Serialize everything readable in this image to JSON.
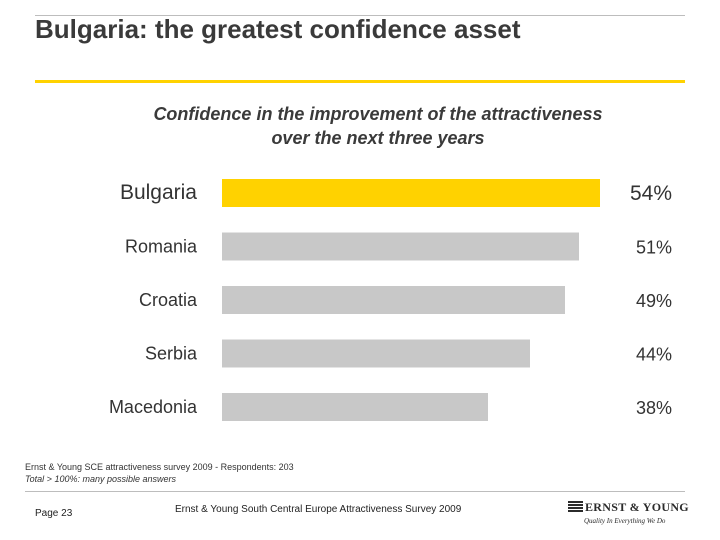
{
  "slide": {
    "title": "Bulgaria: the greatest confidence asset",
    "accent_color": "#ffd200",
    "footnote_line1": "Ernst & Young SCE attractiveness survey 2009 - Respondents: 203",
    "footnote_line2": "Total > 100%: many possible answers",
    "page_number": "Page 23",
    "survey_name": "Ernst & Young South Central Europe Attractiveness Survey 2009",
    "logo": {
      "name": "ERNST & YOUNG",
      "tagline": "Quality In Everything We Do"
    }
  },
  "chart_data": {
    "type": "bar",
    "orientation": "horizontal",
    "title_line1": "Confidence in the improvement of the attractiveness",
    "title_line2": "over the next three years",
    "categories": [
      "Bulgaria",
      "Romania",
      "Croatia",
      "Serbia",
      "Macedonia"
    ],
    "values": [
      54,
      51,
      49,
      44,
      38
    ],
    "value_labels": [
      "54%",
      "51%",
      "49%",
      "44%",
      "38%"
    ],
    "unit": "%",
    "xlim": [
      0,
      60
    ],
    "grid": false,
    "highlight_color": "#ffd200",
    "bar_color": "#c8c8c8",
    "highlight_index": 0
  }
}
